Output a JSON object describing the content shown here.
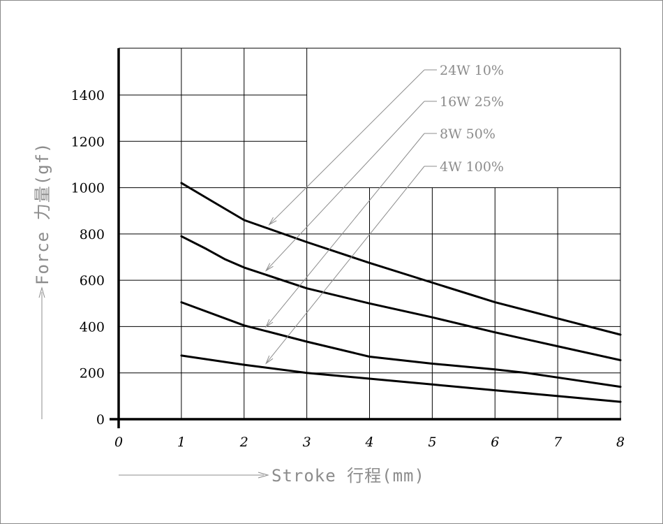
{
  "chart_data": {
    "type": "line",
    "xlabel": "Stroke 行程(mm)",
    "ylabel": "Force 力量(gf)",
    "xlim": [
      0,
      8
    ],
    "ylim": [
      0,
      1500
    ],
    "x_ticks": [
      "0",
      "1",
      "2",
      "3",
      "4",
      "5",
      "6",
      "7",
      "8"
    ],
    "y_ticks": [
      "0",
      "200",
      "400",
      "600",
      "800",
      "1000",
      "1200",
      "1400"
    ],
    "grid": true,
    "series": [
      {
        "name": "24W 10%",
        "x": [
          1,
          1.5,
          2,
          3,
          4,
          5,
          6,
          7,
          8
        ],
        "y": [
          1020,
          940,
          860,
          765,
          675,
          590,
          505,
          435,
          365
        ]
      },
      {
        "name": "16W 25%",
        "x": [
          1,
          1.4,
          1.7,
          2,
          3,
          4,
          5,
          6,
          7,
          8
        ],
        "y": [
          790,
          735,
          690,
          655,
          565,
          500,
          440,
          375,
          315,
          255
        ]
      },
      {
        "name": "8W 50%",
        "x": [
          1,
          2,
          3,
          4,
          5,
          6,
          6.5,
          7,
          8
        ],
        "y": [
          505,
          405,
          335,
          270,
          240,
          215,
          200,
          180,
          140
        ]
      },
      {
        "name": "4W 100%",
        "x": [
          1,
          2,
          3,
          4,
          5,
          6,
          7,
          8
        ],
        "y": [
          275,
          235,
          200,
          175,
          150,
          125,
          100,
          75
        ]
      }
    ]
  }
}
